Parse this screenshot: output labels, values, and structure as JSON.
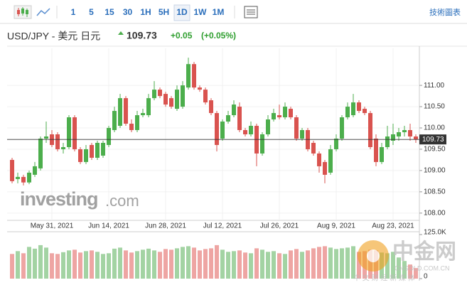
{
  "toolbar": {
    "intervals": [
      "1",
      "5",
      "15",
      "30",
      "1H",
      "5H",
      "1D",
      "1W",
      "1M"
    ],
    "active": "1D",
    "right_link": "技術圖表"
  },
  "header": {
    "symbol": "USD/JPY - 美元 日元",
    "change": "+0.05",
    "change_pct": "(+0.05%)"
  },
  "watermarks": {
    "brand": "investing",
    "brand_suffix": ".com",
    "site": "中金网",
    "site_domain": "CNGOLD.COM.CN",
    "site_tagline": "中 文 财 经 新 媒 体"
  },
  "chart_data": {
    "type": "candlestick",
    "categories": [
      null,
      null,
      null,
      null,
      null,
      null,
      null,
      "May 31, 2021",
      null,
      null,
      null,
      null,
      null,
      null,
      null,
      null,
      null,
      "Jun 14, 2021",
      null,
      null,
      null,
      null,
      null,
      null,
      null,
      null,
      null,
      "Jun 28, 2021",
      null,
      null,
      null,
      null,
      null,
      null,
      null,
      null,
      null,
      "Jul 12, 2021",
      null,
      null,
      null,
      null,
      null,
      null,
      null,
      null,
      null,
      "Jul 26, 2021",
      null,
      null,
      null,
      null,
      null,
      null,
      null,
      null,
      null,
      "Aug 9, 2021",
      null,
      null,
      null,
      null,
      null,
      null,
      null,
      null,
      null,
      "Aug 23, 2021",
      null,
      null,
      null,
      null
    ],
    "open": [
      109.25,
      108.8,
      108.85,
      108.72,
      108.9,
      109.05,
      109.75,
      109.85,
      109.85,
      109.5,
      109.55,
      110.25,
      109.5,
      109.2,
      109.6,
      109.3,
      109.35,
      109.6,
      109.95,
      110.05,
      110.7,
      110.1,
      109.95,
      110.3,
      110.3,
      110.7,
      110.9,
      110.8,
      110.7,
      110.45,
      110.5,
      110.95,
      111.5,
      110.95,
      110.9,
      110.65,
      110.35,
      109.75,
      110.15,
      110.3,
      110.5,
      109.95,
      109.85,
      110.05,
      109.4,
      109.85,
      110.2,
      110.3,
      110.25,
      110.45,
      110.25,
      109.75,
      109.95,
      109.65,
      109.4,
      109.2,
      108.95,
      109.5,
      109.75,
      110.25,
      110.3,
      110.6,
      110.45,
      110.35,
      109.75,
      109.2,
      109.55,
      109.7,
      109.8,
      109.9,
      109.95,
      109.8
    ],
    "high": [
      109.3,
      108.95,
      108.9,
      109.0,
      109.2,
      109.8,
      110.15,
      109.95,
      109.9,
      109.65,
      110.3,
      110.3,
      109.55,
      109.6,
      109.65,
      109.7,
      109.7,
      110.05,
      110.5,
      110.8,
      110.75,
      110.2,
      110.4,
      110.45,
      110.8,
      111.1,
      110.95,
      110.85,
      110.75,
      111.0,
      111.1,
      111.65,
      111.55,
      111.0,
      110.95,
      110.7,
      110.4,
      110.2,
      110.4,
      110.65,
      110.6,
      110.0,
      110.15,
      110.1,
      109.9,
      110.3,
      110.45,
      110.55,
      110.6,
      110.5,
      110.3,
      110.0,
      110.0,
      109.7,
      109.45,
      109.25,
      109.6,
      109.85,
      110.3,
      110.6,
      110.8,
      110.65,
      110.5,
      110.4,
      109.85,
      109.65,
      110.05,
      110.1,
      110.0,
      110.05,
      110.1,
      109.85
    ],
    "low": [
      108.7,
      108.7,
      108.65,
      108.68,
      108.85,
      109.0,
      109.65,
      109.55,
      109.45,
      109.4,
      109.5,
      109.45,
      109.15,
      109.15,
      109.25,
      109.25,
      109.3,
      109.55,
      109.9,
      110.0,
      110.05,
      109.9,
      109.9,
      110.25,
      110.25,
      110.65,
      110.7,
      110.5,
      110.45,
      110.4,
      110.45,
      110.9,
      110.9,
      110.85,
      110.55,
      110.3,
      109.45,
      109.7,
      110.1,
      110.25,
      109.9,
      109.8,
      109.8,
      109.1,
      109.35,
      109.8,
      110.15,
      110.2,
      110.2,
      110.2,
      109.7,
      109.7,
      109.45,
      109.35,
      108.95,
      108.7,
      108.9,
      109.45,
      109.7,
      110.2,
      110.25,
      110.35,
      110.3,
      109.5,
      109.1,
      109.15,
      109.5,
      109.6,
      109.7,
      109.8,
      109.7,
      109.65
    ],
    "close": [
      108.75,
      108.85,
      108.72,
      108.95,
      109.1,
      109.75,
      109.8,
      109.6,
      109.5,
      109.55,
      110.25,
      109.5,
      109.2,
      109.5,
      109.3,
      109.65,
      109.65,
      110.0,
      110.4,
      110.7,
      110.1,
      109.95,
      110.3,
      110.35,
      110.7,
      110.9,
      110.75,
      110.55,
      110.5,
      110.9,
      111.0,
      111.5,
      110.95,
      110.9,
      110.6,
      110.35,
      109.6,
      110.15,
      110.3,
      110.55,
      109.95,
      109.85,
      110.05,
      109.4,
      109.85,
      110.2,
      110.35,
      110.25,
      110.5,
      110.25,
      109.75,
      109.95,
      109.5,
      109.4,
      109.1,
      108.9,
      109.5,
      109.75,
      110.25,
      110.5,
      110.6,
      110.4,
      110.35,
      109.55,
      109.2,
      109.55,
      109.8,
      109.85,
      109.9,
      109.95,
      109.8,
      109.73
    ],
    "volume": [
      70000,
      78000,
      72000,
      90000,
      85000,
      95000,
      88000,
      72000,
      70000,
      75000,
      80000,
      82000,
      74000,
      78000,
      80000,
      76000,
      70000,
      72000,
      85000,
      88000,
      80000,
      74000,
      78000,
      82000,
      85000,
      80000,
      76000,
      84000,
      82000,
      86000,
      90000,
      92000,
      88000,
      80000,
      84000,
      86000,
      95000,
      82000,
      76000,
      78000,
      80000,
      74000,
      72000,
      86000,
      82000,
      76000,
      78000,
      72000,
      70000,
      80000,
      84000,
      76000,
      80000,
      86000,
      90000,
      92000,
      88000,
      84000,
      86000,
      88000,
      92000,
      76000,
      78000,
      82000,
      80000,
      74000,
      72000,
      76000,
      60000,
      50000,
      40000,
      30000
    ],
    "last_price": 109.73,
    "ylim": [
      107.83,
      111.87
    ],
    "yticks": [
      {
        "value": 111,
        "label": "111.00"
      },
      {
        "value": 110.5,
        "label": "110.50"
      },
      {
        "value": 110,
        "label": "110.00"
      },
      {
        "value": 109.5,
        "label": "109.50"
      },
      {
        "value": 109,
        "label": "109.00"
      },
      {
        "value": 108.5,
        "label": "108.50"
      },
      {
        "value": 108,
        "label": "108.00"
      }
    ],
    "volume_lim": [
      0,
      125000
    ],
    "volume_ticks": [
      {
        "value": 125000,
        "label": "125.0K"
      },
      0
    ],
    "up_color": "#4cae4c",
    "down_color": "#d9534f",
    "up_volume_color": "#a3d3a3",
    "down_volume_color": "#eea5a3",
    "grid": true
  }
}
